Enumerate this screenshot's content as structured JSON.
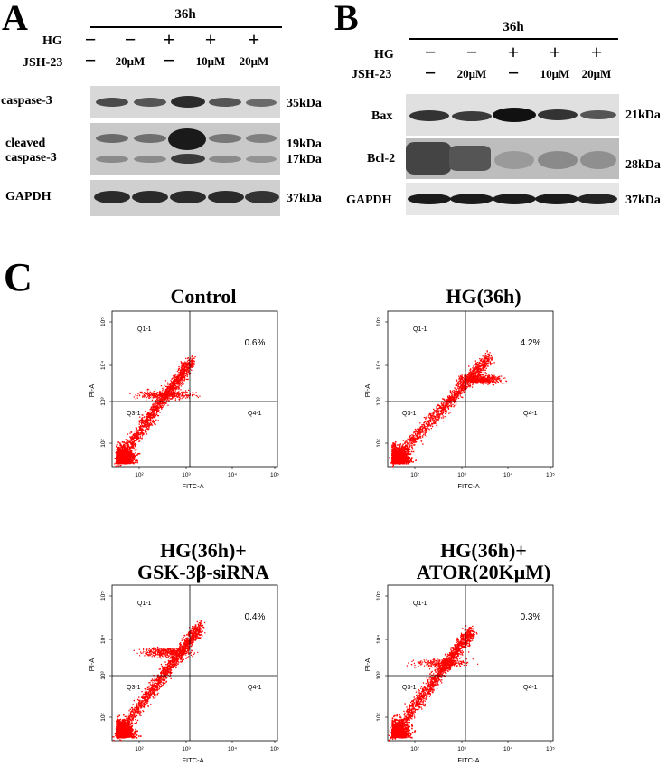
{
  "panelA": {
    "letter": "A",
    "header": "36h",
    "hg_label": "HG",
    "jsh_label": "JSH-23",
    "hg": [
      "−",
      "−",
      "+",
      "+",
      "+"
    ],
    "jsh": [
      "−",
      "20μM",
      "−",
      "10μM",
      "20μM"
    ],
    "rows": [
      {
        "label": "caspase-3",
        "kda": "35kDa"
      },
      {
        "label": "cleaved\ncaspase-3",
        "kda": "19kDa\n17kDa"
      },
      {
        "label": "GAPDH",
        "kda": "37kDa"
      }
    ]
  },
  "panelB": {
    "letter": "B",
    "header": "36h",
    "hg_label": "HG",
    "jsh_label": "JSH-23",
    "hg": [
      "−",
      "−",
      "+",
      "+",
      "+"
    ],
    "jsh": [
      "−",
      "20μM",
      "−",
      "10μM",
      "20μM"
    ],
    "rows": [
      {
        "label": "Bax",
        "kda": "21kDa"
      },
      {
        "label": "Bcl-2",
        "kda": "28kDa"
      },
      {
        "label": "GAPDH",
        "kda": "37kDa"
      }
    ]
  },
  "panelC": {
    "letter": "C",
    "plots": [
      {
        "title": "Control",
        "ur_percent": "0.6%"
      },
      {
        "title": "HG(36h)",
        "ur_percent": "4.2%"
      },
      {
        "title": "HG(36h)+\nGSK-3β-siRNA",
        "ur_percent": "0.4%"
      },
      {
        "title": "HG(36h)+\nATOR(20KμM)",
        "ur_percent": "0.3%"
      }
    ],
    "quadrants": {
      "ul": "Q1-1",
      "ll": "Q3-1",
      "lr": "Q4-1"
    },
    "xaxis": "FITC-A",
    "yaxis": "PI-A",
    "xticks": [
      "10²",
      "10³",
      "10⁴",
      "10⁵"
    ],
    "yticks": [
      "10²",
      "10³",
      "10⁴",
      "10⁵"
    ],
    "dot_color": "#ff0000"
  }
}
